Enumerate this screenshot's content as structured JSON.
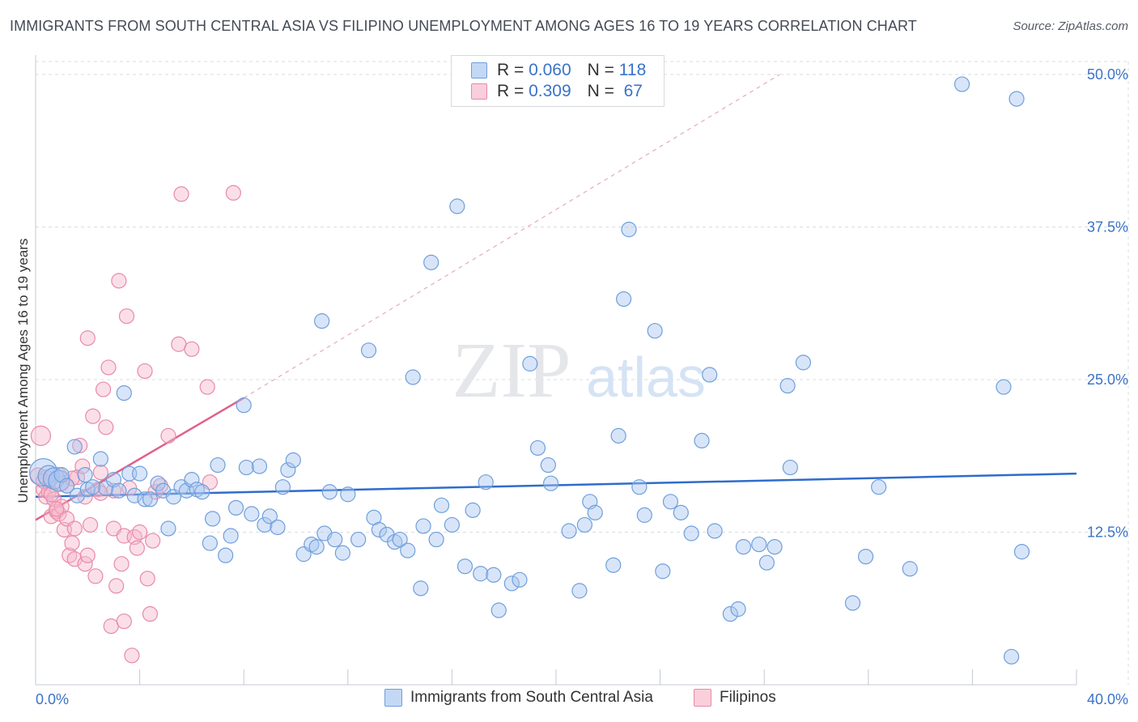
{
  "title": "IMMIGRANTS FROM SOUTH CENTRAL ASIA VS FILIPINO UNEMPLOYMENT AMONG AGES 16 TO 19 YEARS CORRELATION CHART",
  "source": "Source: ZipAtlas.com",
  "watermark": {
    "zip": "ZIP",
    "atlas": "atlas"
  },
  "legend": {
    "rows": [
      {
        "r_label": "R =",
        "r_value": "0.060",
        "n_label": "N =",
        "n_value": "118"
      },
      {
        "r_label": "R =",
        "r_value": "0.309",
        "n_label": "N =",
        "n_value": "67"
      }
    ]
  },
  "colors": {
    "blue_fill": "#a8c6f0",
    "blue_stroke": "#6f9fdc",
    "blue_line": "#2f6ccc",
    "pink_fill": "#f6b9cc",
    "pink_stroke": "#e88aa8",
    "pink_line": "#e0628a",
    "grid": "#d9dce2",
    "axis_text": "#3a73c8"
  },
  "chart_data": {
    "type": "scatter",
    "title": "IMMIGRANTS FROM SOUTH CENTRAL ASIA VS FILIPINO UNEMPLOYMENT AMONG AGES 16 TO 19 YEARS CORRELATION CHART",
    "xlabel": "",
    "ylabel": "Unemployment Among Ages 16 to 19 years",
    "xlim": [
      0,
      40
    ],
    "ylim": [
      0,
      50
    ],
    "x_tick_labels": [
      "0.0%",
      "40.0%"
    ],
    "y_tick_values": [
      12.5,
      25.0,
      37.5,
      50.0
    ],
    "y_tick_labels": [
      "12.5%",
      "25.0%",
      "37.5%",
      "50.0%"
    ],
    "grid": true,
    "legend_position": "top-center",
    "series": [
      {
        "name": "Immigrants from South Central Asia",
        "r": 0.06,
        "n": 118,
        "trend": {
          "x": [
            0,
            40
          ],
          "y": [
            15.4,
            17.3
          ],
          "style": "solid"
        },
        "points": [
          [
            0.3,
            17.4
          ],
          [
            0.5,
            17.1
          ],
          [
            0.7,
            16.9
          ],
          [
            0.9,
            16.7
          ],
          [
            1.0,
            17.2
          ],
          [
            1.2,
            16.3
          ],
          [
            1.5,
            19.5
          ],
          [
            1.6,
            15.5
          ],
          [
            1.9,
            17.2
          ],
          [
            2.0,
            16.0
          ],
          [
            2.2,
            16.2
          ],
          [
            2.5,
            18.5
          ],
          [
            2.7,
            16.1
          ],
          [
            3.0,
            16.8
          ],
          [
            3.2,
            15.9
          ],
          [
            3.4,
            23.9
          ],
          [
            3.6,
            17.3
          ],
          [
            3.8,
            15.5
          ],
          [
            4.0,
            17.3
          ],
          [
            4.2,
            15.2
          ],
          [
            4.4,
            15.2
          ],
          [
            4.7,
            16.5
          ],
          [
            4.9,
            15.9
          ],
          [
            5.1,
            12.8
          ],
          [
            5.3,
            15.4
          ],
          [
            5.6,
            16.2
          ],
          [
            5.8,
            15.9
          ],
          [
            6.0,
            16.8
          ],
          [
            6.2,
            16.0
          ],
          [
            6.4,
            15.8
          ],
          [
            6.7,
            11.6
          ],
          [
            6.8,
            13.6
          ],
          [
            7.0,
            18.0
          ],
          [
            7.3,
            10.6
          ],
          [
            7.5,
            12.2
          ],
          [
            7.7,
            14.5
          ],
          [
            8.0,
            22.9
          ],
          [
            8.1,
            17.8
          ],
          [
            8.3,
            14.0
          ],
          [
            8.6,
            17.9
          ],
          [
            8.8,
            13.1
          ],
          [
            9.0,
            13.8
          ],
          [
            9.3,
            12.9
          ],
          [
            9.5,
            16.2
          ],
          [
            9.7,
            17.6
          ],
          [
            9.9,
            18.4
          ],
          [
            10.3,
            10.7
          ],
          [
            10.6,
            11.5
          ],
          [
            10.8,
            11.3
          ],
          [
            11.0,
            29.8
          ],
          [
            11.1,
            12.4
          ],
          [
            11.3,
            15.8
          ],
          [
            11.5,
            11.9
          ],
          [
            11.8,
            10.8
          ],
          [
            12.0,
            15.6
          ],
          [
            12.4,
            11.9
          ],
          [
            12.8,
            27.4
          ],
          [
            13.0,
            13.7
          ],
          [
            13.2,
            12.7
          ],
          [
            13.5,
            12.3
          ],
          [
            13.8,
            11.7
          ],
          [
            14.0,
            11.9
          ],
          [
            14.3,
            11.0
          ],
          [
            14.5,
            25.2
          ],
          [
            14.8,
            7.9
          ],
          [
            14.9,
            13.0
          ],
          [
            15.2,
            34.6
          ],
          [
            15.4,
            11.9
          ],
          [
            15.6,
            14.7
          ],
          [
            16.0,
            13.1
          ],
          [
            16.2,
            39.2
          ],
          [
            16.5,
            9.7
          ],
          [
            16.8,
            14.3
          ],
          [
            17.1,
            9.1
          ],
          [
            17.3,
            16.6
          ],
          [
            17.6,
            9.0
          ],
          [
            17.8,
            6.1
          ],
          [
            18.3,
            8.3
          ],
          [
            18.6,
            8.6
          ],
          [
            19.0,
            26.3
          ],
          [
            19.3,
            19.4
          ],
          [
            19.7,
            18.0
          ],
          [
            19.8,
            16.5
          ],
          [
            20.5,
            12.6
          ],
          [
            20.9,
            7.7
          ],
          [
            21.1,
            13.1
          ],
          [
            21.3,
            15.0
          ],
          [
            21.5,
            14.1
          ],
          [
            22.2,
            9.8
          ],
          [
            22.4,
            20.4
          ],
          [
            22.6,
            31.6
          ],
          [
            22.8,
            37.3
          ],
          [
            23.2,
            16.2
          ],
          [
            23.4,
            13.9
          ],
          [
            23.8,
            29.0
          ],
          [
            24.1,
            9.3
          ],
          [
            24.4,
            15.0
          ],
          [
            24.8,
            14.1
          ],
          [
            25.2,
            12.4
          ],
          [
            25.6,
            20.0
          ],
          [
            25.9,
            25.4
          ],
          [
            26.1,
            12.6
          ],
          [
            26.7,
            5.8
          ],
          [
            27.0,
            6.2
          ],
          [
            27.2,
            11.3
          ],
          [
            27.8,
            11.5
          ],
          [
            28.1,
            10.0
          ],
          [
            28.4,
            11.3
          ],
          [
            28.9,
            24.5
          ],
          [
            29.0,
            17.8
          ],
          [
            29.5,
            26.4
          ],
          [
            31.4,
            6.7
          ],
          [
            31.9,
            10.5
          ],
          [
            32.4,
            16.2
          ],
          [
            33.6,
            9.5
          ],
          [
            35.6,
            49.2
          ],
          [
            37.2,
            24.4
          ],
          [
            37.7,
            48.0
          ],
          [
            37.9,
            10.9
          ],
          [
            37.5,
            2.3
          ]
        ]
      },
      {
        "name": "Filipinos",
        "r": 0.309,
        "n": 67,
        "trend": {
          "x": [
            0,
            8.0
          ],
          "y": [
            13.5,
            23.5
          ],
          "style": "solid",
          "extended_to": [
            28.6,
            50.0
          ],
          "extended_style": "dashed"
        },
        "points": [
          [
            0.1,
            17.1
          ],
          [
            0.2,
            20.4
          ],
          [
            0.3,
            16.0
          ],
          [
            0.4,
            15.4
          ],
          [
            0.5,
            15.8
          ],
          [
            0.6,
            13.8
          ],
          [
            0.7,
            15.2
          ],
          [
            0.8,
            14.2
          ],
          [
            0.9,
            14.0
          ],
          [
            1.0,
            16.5
          ],
          [
            1.0,
            14.6
          ],
          [
            1.1,
            12.7
          ],
          [
            1.2,
            16.3
          ],
          [
            1.3,
            10.6
          ],
          [
            1.4,
            11.6
          ],
          [
            1.5,
            10.3
          ],
          [
            1.6,
            17.0
          ],
          [
            1.7,
            19.6
          ],
          [
            1.8,
            17.9
          ],
          [
            1.9,
            15.4
          ],
          [
            1.9,
            9.9
          ],
          [
            2.0,
            10.6
          ],
          [
            2.0,
            28.4
          ],
          [
            2.1,
            13.1
          ],
          [
            2.2,
            22.0
          ],
          [
            2.3,
            8.9
          ],
          [
            2.4,
            16.0
          ],
          [
            2.5,
            15.7
          ],
          [
            2.5,
            17.4
          ],
          [
            2.6,
            24.2
          ],
          [
            2.7,
            21.1
          ],
          [
            2.8,
            26.0
          ],
          [
            2.9,
            4.8
          ],
          [
            3.0,
            15.9
          ],
          [
            3.0,
            12.8
          ],
          [
            3.1,
            8.1
          ],
          [
            3.2,
            33.1
          ],
          [
            3.3,
            9.9
          ],
          [
            3.4,
            12.2
          ],
          [
            3.4,
            5.2
          ],
          [
            3.5,
            30.2
          ],
          [
            3.6,
            16.1
          ],
          [
            3.7,
            2.4
          ],
          [
            3.8,
            12.1
          ],
          [
            3.9,
            11.2
          ],
          [
            4.0,
            12.5
          ],
          [
            4.2,
            25.7
          ],
          [
            4.3,
            8.7
          ],
          [
            4.4,
            5.8
          ],
          [
            4.5,
            11.8
          ],
          [
            4.6,
            15.8
          ],
          [
            4.8,
            16.3
          ],
          [
            5.1,
            20.4
          ],
          [
            5.5,
            27.9
          ],
          [
            5.6,
            40.2
          ],
          [
            6.0,
            27.5
          ],
          [
            6.6,
            24.4
          ],
          [
            6.7,
            16.6
          ],
          [
            7.6,
            40.3
          ],
          [
            0.4,
            17.0
          ],
          [
            0.6,
            15.6
          ],
          [
            0.8,
            14.4
          ],
          [
            1.2,
            13.6
          ],
          [
            1.5,
            12.8
          ],
          [
            0.3,
            16.7
          ],
          [
            0.9,
            17.2
          ],
          [
            1.4,
            16.9
          ]
        ]
      }
    ]
  },
  "bottom_legend": [
    {
      "label": "Immigrants from South Central Asia"
    },
    {
      "label": "Filipinos"
    }
  ]
}
